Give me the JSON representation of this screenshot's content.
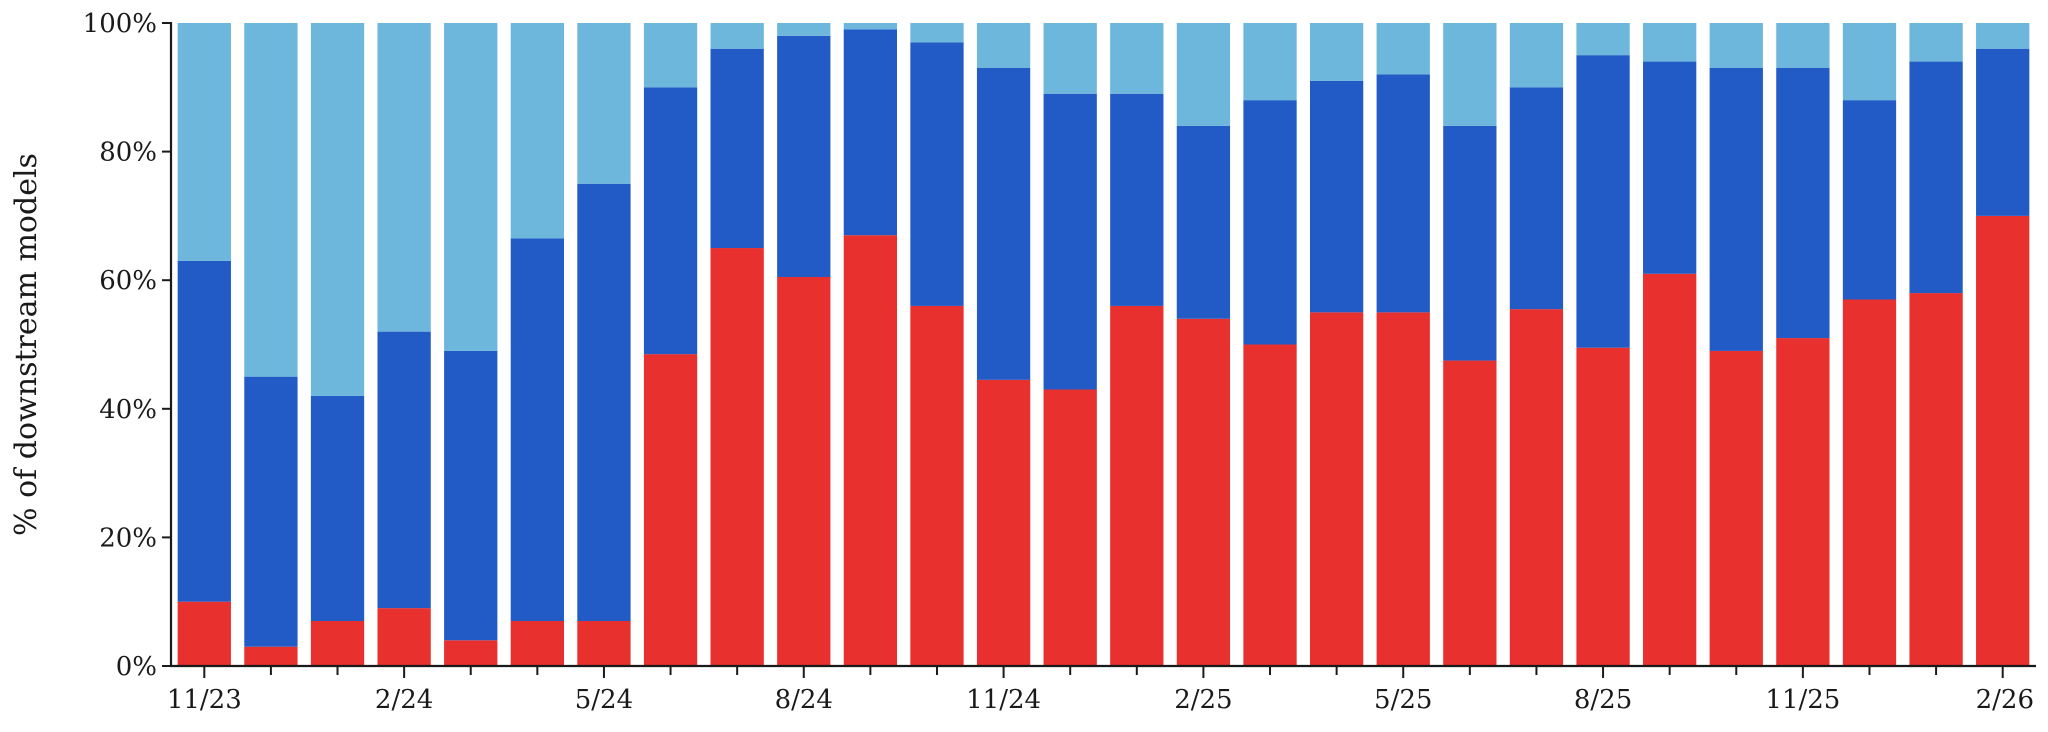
{
  "chart_data": {
    "type": "bar",
    "stacked": true,
    "ylabel": "% of downstream models",
    "ylim": [
      0,
      100
    ],
    "y_ticks": [
      "0%",
      "20%",
      "40%",
      "60%",
      "80%",
      "100%"
    ],
    "x_tick_labels": [
      "11/23",
      "2/24",
      "5/24",
      "8/24",
      "11/24",
      "2/25",
      "5/25",
      "8/25",
      "11/25",
      "2/26"
    ],
    "grid": false,
    "categories": [
      "11/23",
      "12/23",
      "1/24",
      "2/24",
      "3/24",
      "4/24",
      "5/24",
      "6/24",
      "7/24",
      "8/24",
      "9/24",
      "10/24",
      "11/24",
      "12/24",
      "1/25",
      "2/25",
      "3/25",
      "4/25",
      "5/25",
      "6/25",
      "7/25",
      "8/25",
      "9/25",
      "10/25",
      "11/25",
      "12/25",
      "1/26",
      "2/26"
    ],
    "series": [
      {
        "color": "#e8302f",
        "values": [
          10,
          3,
          7,
          9,
          4,
          7,
          7,
          48.5,
          65,
          60.5,
          67,
          56,
          44.5,
          43,
          56,
          54,
          50,
          55,
          55,
          47.5,
          55.5,
          49.5,
          61,
          49,
          51,
          57,
          58,
          70
        ]
      },
      {
        "color": "#225bc5",
        "values": [
          53,
          42,
          35,
          43,
          45,
          59.5,
          68,
          41.5,
          31,
          37.5,
          32,
          41,
          48.5,
          46,
          33,
          30,
          38,
          36,
          37,
          36.5,
          34.5,
          45.5,
          33,
          44,
          42,
          31,
          36,
          26
        ]
      },
      {
        "color": "#6db6dc",
        "values": [
          37,
          55,
          58,
          48,
          51,
          33.5,
          25,
          10,
          4,
          2,
          1,
          3,
          7,
          11,
          11,
          16,
          12,
          9,
          8,
          16,
          10,
          5,
          6,
          7,
          7,
          12,
          6,
          4
        ]
      }
    ]
  }
}
